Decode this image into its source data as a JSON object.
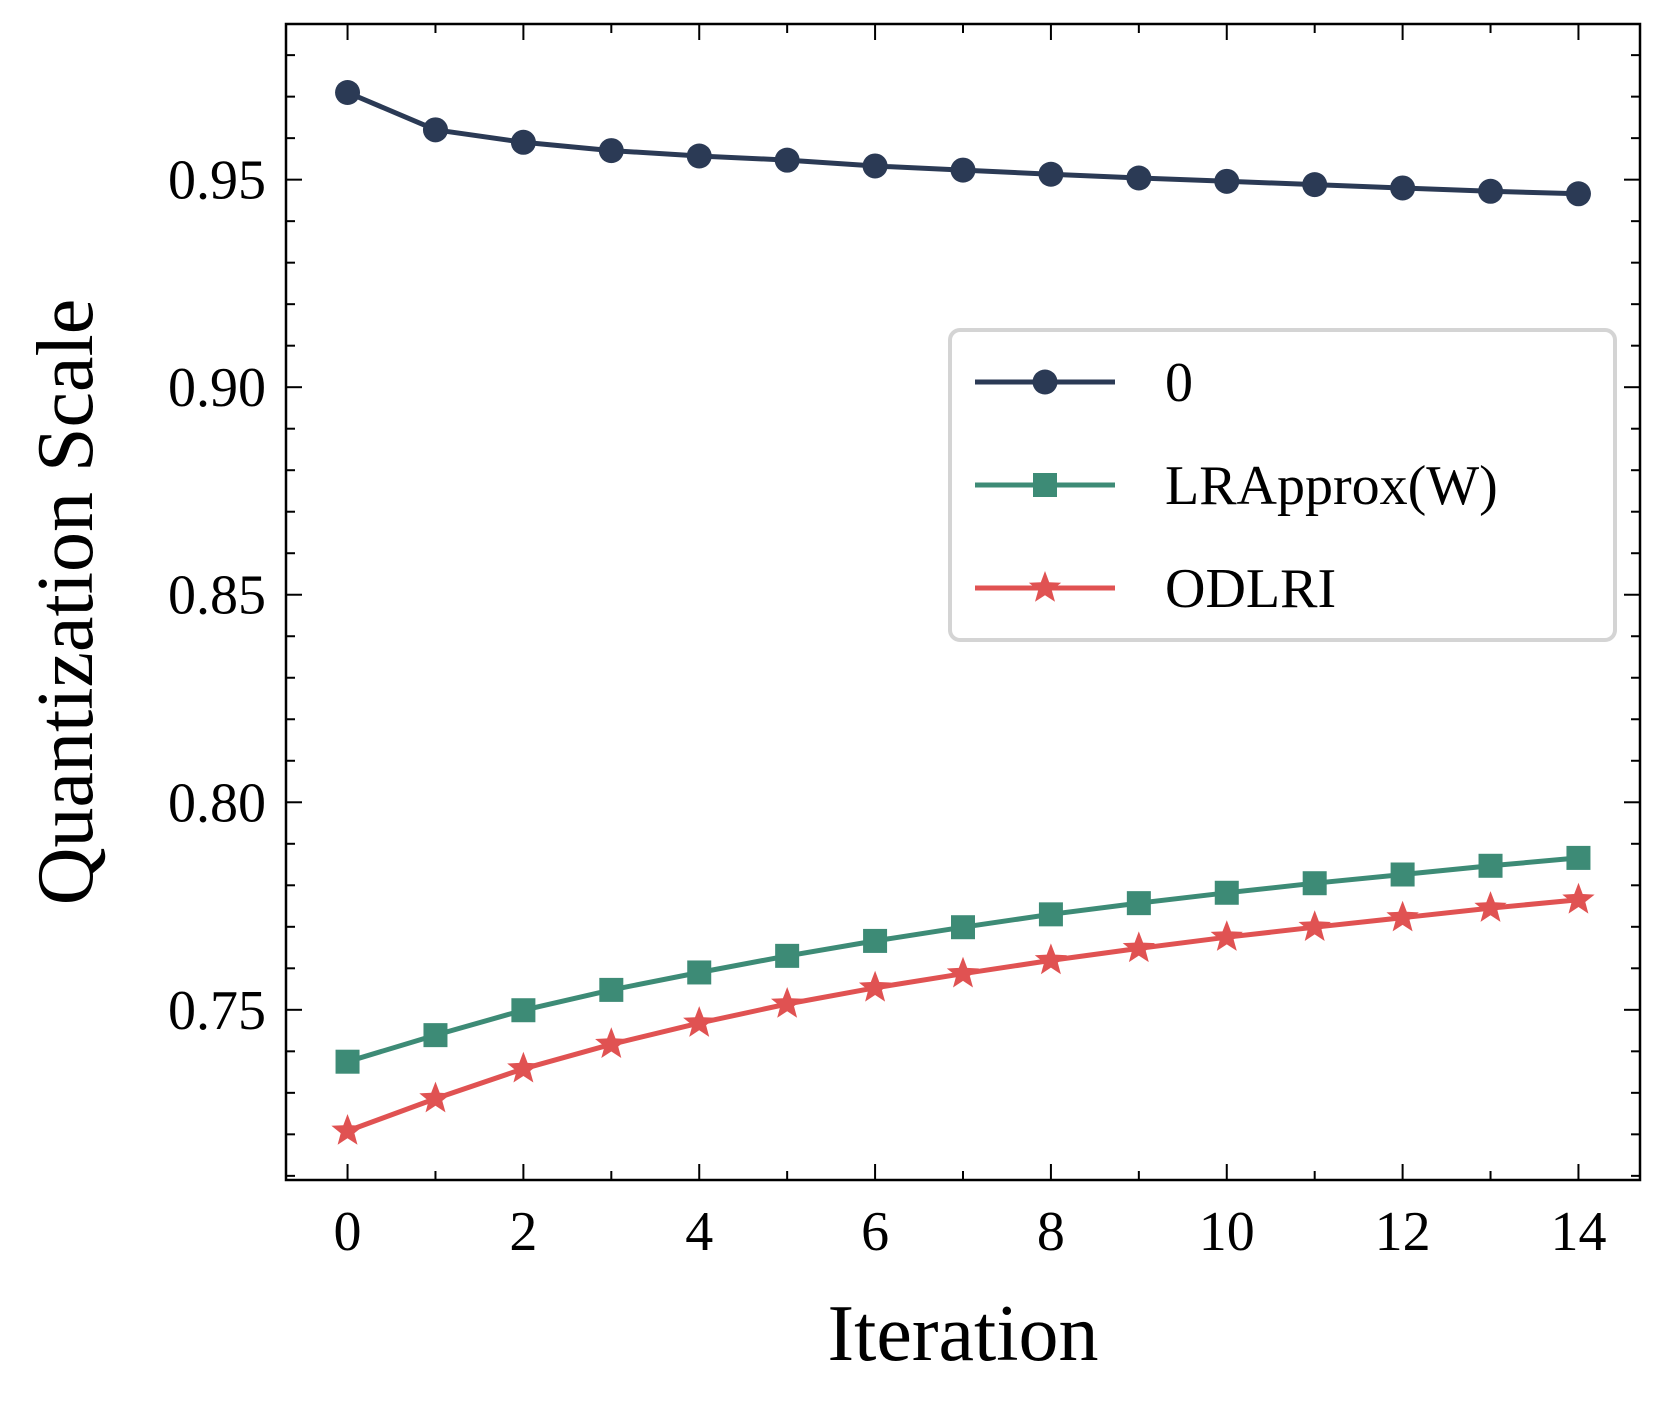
{
  "chart_data": {
    "type": "line",
    "title": "",
    "xlabel": "Iteration",
    "ylabel": "Quantization Scale",
    "xlim": [
      -0.7,
      14.7
    ],
    "ylim": [
      0.709,
      0.9875
    ],
    "x_ticks": [
      0,
      2,
      4,
      6,
      8,
      10,
      12,
      14
    ],
    "y_ticks": [
      0.75,
      0.8,
      0.85,
      0.9,
      0.95
    ],
    "y_tick_labels": [
      "0.75",
      "0.80",
      "0.85",
      "0.90",
      "0.95"
    ],
    "legend_position": "right",
    "grid": false,
    "x": [
      0,
      1,
      2,
      3,
      4,
      5,
      6,
      7,
      8,
      9,
      10,
      11,
      12,
      13,
      14
    ],
    "series": [
      {
        "name": "0",
        "color": "#2b3a55",
        "marker": "circle",
        "values": [
          0.971,
          0.962,
          0.959,
          0.957,
          0.9557,
          0.9547,
          0.9533,
          0.9523,
          0.9513,
          0.9504,
          0.9496,
          0.9488,
          0.948,
          0.9472,
          0.9466
        ]
      },
      {
        "name": "LRApprox(W)",
        "color": "#3d8b76",
        "marker": "square",
        "values": [
          0.7375,
          0.7439,
          0.7499,
          0.7548,
          0.759,
          0.763,
          0.7666,
          0.7699,
          0.773,
          0.7757,
          0.7782,
          0.7805,
          0.7826,
          0.7847,
          0.7866
        ]
      },
      {
        "name": "ODLRI",
        "color": "#e05252",
        "marker": "star",
        "values": [
          0.7208,
          0.7286,
          0.7358,
          0.7417,
          0.7468,
          0.7514,
          0.7553,
          0.7587,
          0.7619,
          0.7648,
          0.7675,
          0.7699,
          0.7722,
          0.7745,
          0.7765
        ]
      }
    ]
  }
}
